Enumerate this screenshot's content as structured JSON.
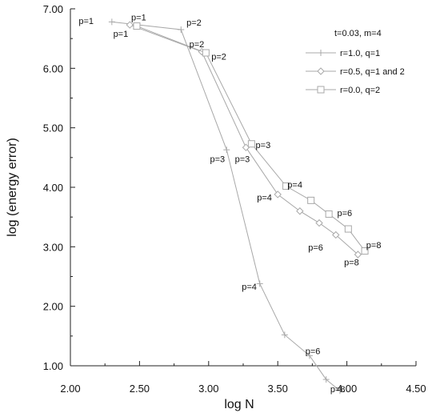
{
  "chart_data": {
    "type": "line",
    "title": "",
    "xlabel": "log N",
    "ylabel": "log (energy error)",
    "xlim": [
      2.0,
      4.5
    ],
    "ylim": [
      1.0,
      7.0
    ],
    "x_ticks": [
      "2.00",
      "2.50",
      "3.00",
      "3.50",
      "4.00",
      "4.50"
    ],
    "y_ticks": [
      "1.00",
      "2.00",
      "3.00",
      "4.00",
      "5.00",
      "6.00",
      "7.00"
    ],
    "grid": false,
    "legend": {
      "placement": "top-right",
      "title": "t=0.03, m=4",
      "entries": [
        "r=1.0, q=1",
        "r=0.5, q=1 and 2",
        "r=0.0, q=2"
      ]
    },
    "series": [
      {
        "name": "r=1.0, q=1",
        "marker": "plus",
        "x": [
          2.3,
          2.8,
          3.13,
          3.37,
          3.55,
          3.73,
          3.85,
          3.95
        ],
        "y": [
          6.78,
          6.65,
          4.63,
          2.38,
          1.52,
          1.17,
          0.77,
          0.58
        ]
      },
      {
        "name": "r=0.5, q=1 and 2",
        "marker": "diamond",
        "x": [
          2.43,
          2.95,
          3.27,
          3.5,
          3.66,
          3.8,
          3.92,
          4.08
        ],
        "y": [
          6.73,
          6.28,
          4.67,
          3.88,
          3.6,
          3.4,
          3.2,
          2.87
        ]
      },
      {
        "name": "r=0.0, q=2",
        "marker": "square",
        "x": [
          2.48,
          2.98,
          3.31,
          3.56,
          3.74,
          3.87,
          4.01,
          4.13
        ],
        "y": [
          6.71,
          6.26,
          4.73,
          4.02,
          3.78,
          3.55,
          3.3,
          2.93
        ]
      }
    ],
    "annotations": [
      {
        "text": "p=1",
        "x": 2.06,
        "y": 6.8
      },
      {
        "text": "p=1",
        "x": 2.44,
        "y": 6.86
      },
      {
        "text": "p=1",
        "x": 2.31,
        "y": 6.58
      },
      {
        "text": "p=2",
        "x": 2.84,
        "y": 6.77
      },
      {
        "text": "p=2",
        "x": 2.86,
        "y": 6.41
      },
      {
        "text": "p=2",
        "x": 3.02,
        "y": 6.2
      },
      {
        "text": "p=3",
        "x": 3.34,
        "y": 4.71
      },
      {
        "text": "p=3",
        "x": 3.01,
        "y": 4.48
      },
      {
        "text": "p=3",
        "x": 3.19,
        "y": 4.48
      },
      {
        "text": "p=4",
        "x": 3.57,
        "y": 4.05
      },
      {
        "text": "p=4",
        "x": 3.35,
        "y": 3.83
      },
      {
        "text": "p=4",
        "x": 3.24,
        "y": 2.33
      },
      {
        "text": "p=6",
        "x": 3.93,
        "y": 3.57
      },
      {
        "text": "p=6",
        "x": 3.72,
        "y": 2.99
      },
      {
        "text": "p=6",
        "x": 3.7,
        "y": 1.25
      },
      {
        "text": "p=8",
        "x": 4.14,
        "y": 3.03
      },
      {
        "text": "p=8",
        "x": 3.98,
        "y": 2.74
      },
      {
        "text": "p=8",
        "x": 3.88,
        "y": 0.61
      }
    ],
    "colors": {
      "series_line": "#a8a8a8",
      "axis": "#222222",
      "text": "#111111"
    }
  }
}
